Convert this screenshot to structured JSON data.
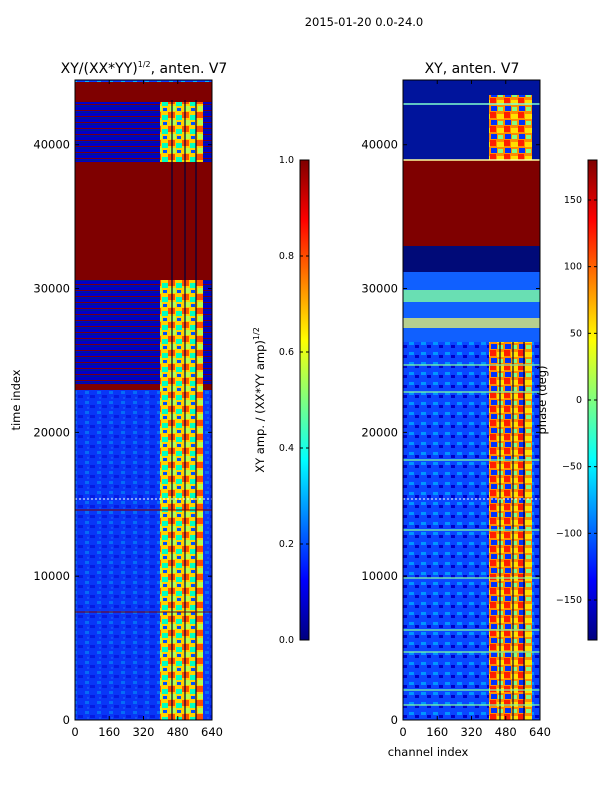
{
  "figure_title": "2015-01-20 0.0-24.0",
  "colors": {
    "jet": [
      "#00007f",
      "#0000ff",
      "#007fff",
      "#00ffff",
      "#7fff7f",
      "#ffff00",
      "#ff7f00",
      "#ff0000",
      "#7f0000"
    ],
    "frame": "#000000"
  },
  "chart_data": [
    {
      "type": "heatmap",
      "title_main": "XY/(XX*YY)",
      "title_sup": "1/2",
      "title_suffix": ", anten. V7",
      "xlabel": "",
      "ylabel": "time index",
      "xlim": [
        0,
        640
      ],
      "ylim": [
        0,
        44500
      ],
      "xticks": [
        0,
        160,
        320,
        480,
        640
      ],
      "yticks": [
        0,
        10000,
        20000,
        30000,
        40000
      ],
      "xtick_labels": [
        "0",
        "160",
        "320",
        "480",
        "640"
      ],
      "ytick_labels": [
        "0",
        "10000",
        "20000",
        "30000",
        "40000"
      ],
      "colorbar": {
        "label_main": "XY amp. / (XX*YY amp)",
        "label_sup": "1/2",
        "range": [
          0.0,
          1.0
        ],
        "ticks": [
          0.0,
          0.2,
          0.4,
          0.6,
          0.8,
          1.0
        ],
        "tick_labels": [
          "0.0",
          "0.2",
          "0.4",
          "0.6",
          "0.8",
          "1.0"
        ]
      },
      "regions": [
        {
          "name": "background",
          "y": [
            0,
            44500
          ],
          "x": [
            0,
            640
          ],
          "value": 0.12
        },
        {
          "name": "saturated-block-top",
          "y": [
            30500,
            38300
          ],
          "x": [
            0,
            640
          ],
          "value": 1.0
        },
        {
          "name": "saturated-block-cap",
          "y": [
            42800,
            44300
          ],
          "x": [
            0,
            640
          ],
          "value": 1.0
        },
        {
          "name": "saturated-band",
          "y": [
            22600,
            23000
          ],
          "x": [
            0,
            640
          ],
          "value": 1.0
        },
        {
          "name": "high-coherence-channels",
          "y": [
            0,
            29000
          ],
          "x": [
            400,
            600
          ],
          "value": 0.7
        }
      ]
    },
    {
      "type": "heatmap",
      "title_main": "XY, anten. V7",
      "title_sup": "",
      "title_suffix": "",
      "xlabel": "channel index",
      "ylabel": "",
      "xlim": [
        0,
        640
      ],
      "ylim": [
        0,
        44500
      ],
      "xticks": [
        0,
        160,
        320,
        480,
        640
      ],
      "yticks": [
        0,
        10000,
        20000,
        30000,
        40000
      ],
      "xtick_labels": [
        "0",
        "160",
        "320",
        "480",
        "640"
      ],
      "ytick_labels": [
        "0",
        "10000",
        "20000",
        "30000",
        "40000"
      ],
      "colorbar": {
        "label_main": "phase (deg)",
        "label_sup": "",
        "range": [
          -180,
          180
        ],
        "ticks": [
          -150,
          -100,
          -50,
          0,
          50,
          100,
          150
        ],
        "tick_labels": [
          "−150",
          "−100",
          "−50",
          "0",
          "50",
          "100",
          "150"
        ]
      },
      "regions": [
        {
          "name": "background",
          "y": [
            0,
            44500
          ],
          "x": [
            0,
            640
          ],
          "value": -140
        },
        {
          "name": "saturated-block",
          "y": [
            32500,
            38300
          ],
          "x": [
            0,
            640
          ],
          "value": 170
        },
        {
          "name": "dark-block",
          "y": [
            30700,
            32500
          ],
          "x": [
            0,
            640
          ],
          "value": -175
        },
        {
          "name": "phase-wrap-channels",
          "y": [
            0,
            29000
          ],
          "x": [
            400,
            600
          ],
          "value": 100
        }
      ]
    }
  ]
}
